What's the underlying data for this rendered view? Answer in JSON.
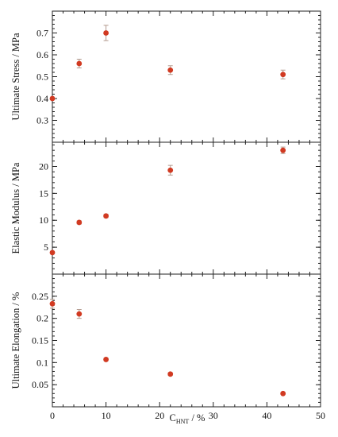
{
  "chart_data": {
    "type": "scatter",
    "x_axis": {
      "label_main": "C",
      "label_sub": "HNT",
      "label_unit": " / %",
      "xlim": [
        0,
        50
      ],
      "ticks": [
        "0",
        "10",
        "20",
        "30",
        "40",
        "50"
      ],
      "minor_step": 2
    },
    "panels": [
      {
        "ylabel": "Ultimate Stress / MPa",
        "ylim": [
          0.2,
          0.8
        ],
        "ticks": [
          "0.3",
          "0.4",
          "0.5",
          "0.6",
          "0.7"
        ],
        "minor_step": 0.02,
        "points": [
          {
            "x": 0,
            "y": 0.4,
            "err": 0.0
          },
          {
            "x": 5,
            "y": 0.56,
            "err": 0.02
          },
          {
            "x": 10,
            "y": 0.7,
            "err": 0.035
          },
          {
            "x": 22,
            "y": 0.53,
            "err": 0.02
          },
          {
            "x": 43,
            "y": 0.51,
            "err": 0.02
          }
        ]
      },
      {
        "ylabel": "Elastic Modulus / MPa",
        "ylim": [
          0,
          24.5
        ],
        "ticks": [
          "5",
          "10",
          "15",
          "20"
        ],
        "minor_step": 1,
        "points": [
          {
            "x": 0,
            "y": 4.0,
            "err": 0.2
          },
          {
            "x": 5,
            "y": 9.6,
            "err": 0.3
          },
          {
            "x": 10,
            "y": 10.8,
            "err": 0.3
          },
          {
            "x": 22,
            "y": 19.3,
            "err": 0.9
          },
          {
            "x": 43,
            "y": 23.0,
            "err": 0.6
          }
        ]
      },
      {
        "ylabel": "Ultimate Elongation / %",
        "ylim": [
          0,
          0.3
        ],
        "ticks": [
          "0.05",
          "0.1",
          "0.15",
          "0.2",
          "0.25"
        ],
        "minor_step": 0.01,
        "points": [
          {
            "x": 0,
            "y": 0.233,
            "err": 0.01
          },
          {
            "x": 5,
            "y": 0.21,
            "err": 0.01
          },
          {
            "x": 10,
            "y": 0.107,
            "err": 0.003
          },
          {
            "x": 22,
            "y": 0.074,
            "err": 0.003
          },
          {
            "x": 43,
            "y": 0.03,
            "err": 0.002
          }
        ]
      }
    ],
    "colors": {
      "point": "#d13a22",
      "error_bar": "#b39a8e",
      "axes": "#222222"
    },
    "grid": false
  }
}
